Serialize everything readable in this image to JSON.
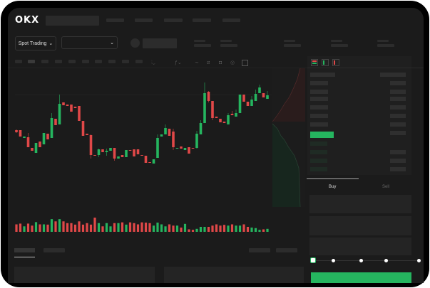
{
  "header": {
    "logo": "OKX"
  },
  "toolbar": {
    "market_type_label": "Spot Trading",
    "pair_dropdown_value": ""
  },
  "trade_panel": {
    "tabs": [
      "Buy",
      "Sell"
    ],
    "active_tab": "Buy",
    "slider_level": 0
  },
  "colors": {
    "up": "#25b55f",
    "down": "#e04848",
    "background": "#1b1b1b",
    "frame": "#000000"
  },
  "chart": {
    "candles": [
      {
        "o": 118,
        "h": 119,
        "l": 114,
        "c": 115
      },
      {
        "o": 118,
        "h": 118,
        "l": 109,
        "c": 109
      },
      {
        "o": 107,
        "h": 109,
        "l": 107,
        "c": 109
      },
      {
        "o": 108,
        "h": 114,
        "l": 94,
        "c": 94
      },
      {
        "o": 93,
        "h": 93,
        "l": 89,
        "c": 89
      },
      {
        "o": 86,
        "h": 100,
        "l": 86,
        "c": 100
      },
      {
        "o": 102,
        "h": 102,
        "l": 94,
        "c": 94
      },
      {
        "o": 98,
        "h": 114,
        "l": 98,
        "c": 114
      },
      {
        "o": 113,
        "h": 113,
        "l": 105,
        "c": 105
      },
      {
        "o": 107,
        "h": 142,
        "l": 107,
        "c": 135
      },
      {
        "o": 134,
        "h": 134,
        "l": 125,
        "c": 125
      },
      {
        "o": 126,
        "h": 168,
        "l": 126,
        "c": 155
      },
      {
        "o": 157,
        "h": 157,
        "l": 153,
        "c": 153
      },
      {
        "o": 154,
        "h": 154,
        "l": 152,
        "c": 152
      },
      {
        "o": 154,
        "h": 154,
        "l": 144,
        "c": 144
      },
      {
        "o": 151,
        "h": 151,
        "l": 149,
        "c": 149
      },
      {
        "o": 152,
        "h": 152,
        "l": 131,
        "c": 131
      },
      {
        "o": 131,
        "h": 131,
        "l": 110,
        "c": 110
      },
      {
        "o": 113,
        "h": 113,
        "l": 111,
        "c": 111
      },
      {
        "o": 111,
        "h": 112,
        "l": 78,
        "c": 83
      },
      {
        "o": 83,
        "h": 83,
        "l": 82,
        "c": 82
      },
      {
        "o": 83,
        "h": 92,
        "l": 80,
        "c": 91
      },
      {
        "o": 91,
        "h": 91,
        "l": 87,
        "c": 87
      },
      {
        "o": 87,
        "h": 92,
        "l": 82,
        "c": 89
      },
      {
        "o": 89,
        "h": 93,
        "l": 89,
        "c": 93
      },
      {
        "o": 93,
        "h": 93,
        "l": 75,
        "c": 78
      },
      {
        "o": 78,
        "h": 81,
        "l": 78,
        "c": 81
      },
      {
        "o": 83,
        "h": 83,
        "l": 80,
        "c": 80
      },
      {
        "o": 80,
        "h": 90,
        "l": 80,
        "c": 90
      },
      {
        "o": 90,
        "h": 90,
        "l": 89,
        "c": 89
      },
      {
        "o": 91,
        "h": 91,
        "l": 81,
        "c": 81
      },
      {
        "o": 91,
        "h": 91,
        "l": 84,
        "c": 84
      },
      {
        "o": 83,
        "h": 83,
        "l": 82,
        "c": 82
      },
      {
        "o": 82,
        "h": 82,
        "l": 72,
        "c": 72
      },
      {
        "o": 73,
        "h": 73,
        "l": 72,
        "c": 72
      },
      {
        "o": 71,
        "h": 77,
        "l": 71,
        "c": 77
      },
      {
        "o": 79,
        "h": 112,
        "l": 79,
        "c": 107
      },
      {
        "o": 109,
        "h": 112,
        "l": 109,
        "c": 112
      },
      {
        "o": 112,
        "h": 126,
        "l": 112,
        "c": 121
      },
      {
        "o": 120,
        "h": 120,
        "l": 110,
        "c": 110
      },
      {
        "o": 116,
        "h": 120,
        "l": 90,
        "c": 94
      },
      {
        "o": 92,
        "h": 93,
        "l": 92,
        "c": 93
      },
      {
        "o": 95,
        "h": 95,
        "l": 92,
        "c": 92
      },
      {
        "o": 90,
        "h": 93,
        "l": 90,
        "c": 93
      },
      {
        "o": 94,
        "h": 94,
        "l": 85,
        "c": 85
      },
      {
        "o": 93,
        "h": 93,
        "l": 92,
        "c": 92
      },
      {
        "o": 93,
        "h": 117,
        "l": 92,
        "c": 113
      },
      {
        "o": 112,
        "h": 132,
        "l": 112,
        "c": 128
      },
      {
        "o": 128,
        "h": 185,
        "l": 128,
        "c": 170
      },
      {
        "o": 172,
        "h": 173,
        "l": 157,
        "c": 159
      },
      {
        "o": 159,
        "h": 159,
        "l": 132,
        "c": 135
      },
      {
        "o": 137,
        "h": 137,
        "l": 135,
        "c": 135
      },
      {
        "o": 134,
        "h": 134,
        "l": 129,
        "c": 129
      },
      {
        "o": 130,
        "h": 130,
        "l": 128,
        "c": 128
      },
      {
        "o": 126,
        "h": 142,
        "l": 126,
        "c": 139
      },
      {
        "o": 141,
        "h": 145,
        "l": 139,
        "c": 139
      },
      {
        "o": 137,
        "h": 147,
        "l": 137,
        "c": 142
      },
      {
        "o": 142,
        "h": 168,
        "l": 142,
        "c": 168
      },
      {
        "o": 168,
        "h": 168,
        "l": 158,
        "c": 158
      },
      {
        "o": 158,
        "h": 158,
        "l": 152,
        "c": 152
      },
      {
        "o": 152,
        "h": 166,
        "l": 152,
        "c": 161
      },
      {
        "o": 159,
        "h": 175,
        "l": 159,
        "c": 169
      },
      {
        "o": 170,
        "h": 182,
        "l": 170,
        "c": 178
      },
      {
        "o": 170,
        "h": 170,
        "l": 164,
        "c": 164
      },
      {
        "o": 162,
        "h": 173,
        "l": 162,
        "c": 167
      }
    ],
    "volumes": [
      30,
      33,
      22,
      33,
      25,
      39,
      30,
      30,
      29,
      51,
      42,
      51,
      42,
      35,
      35,
      29,
      42,
      29,
      35,
      29,
      57,
      35,
      22,
      35,
      22,
      35,
      35,
      38,
      29,
      38,
      35,
      30,
      38,
      37,
      35,
      25,
      37,
      30,
      22,
      30,
      25,
      25,
      17,
      32,
      10,
      8,
      12,
      20,
      20,
      20,
      25,
      30,
      25,
      28,
      25,
      30,
      25,
      25,
      30,
      20,
      17,
      15,
      8,
      10,
      12
    ]
  }
}
